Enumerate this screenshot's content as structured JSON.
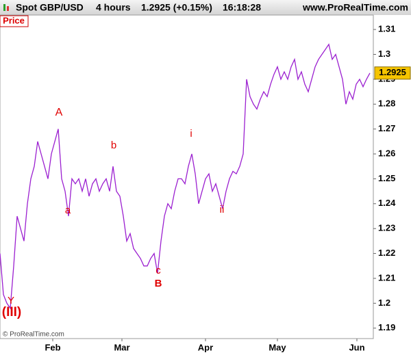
{
  "chart_data": {
    "type": "line",
    "header": {
      "symbol": "Spot GBP/USD",
      "period": "4 hours",
      "quote": "1.2925 (+0.15%)",
      "time": "16:18:28",
      "site": "www.ProRealTime.com"
    },
    "panel_label": "Price",
    "copyright": "© ProRealTime.com",
    "x": [
      0,
      1,
      2,
      3,
      4,
      5,
      6,
      7,
      8,
      9,
      10,
      11,
      12,
      13,
      14,
      15,
      16,
      17,
      18,
      19,
      20,
      21,
      22,
      23,
      24,
      25,
      26,
      27,
      28,
      29,
      30,
      31,
      32,
      33,
      34,
      35,
      36,
      37,
      38,
      39,
      40,
      41,
      42,
      43,
      44,
      45,
      46,
      47,
      48,
      49,
      50,
      51,
      52,
      53,
      54,
      55,
      56,
      57,
      58,
      59,
      60,
      61,
      62,
      63,
      64,
      65,
      66,
      67,
      68,
      69,
      70,
      71,
      72,
      73,
      74,
      75,
      76,
      77,
      78,
      79,
      80,
      81,
      82,
      83,
      84,
      85,
      86,
      87,
      88,
      89,
      90,
      91,
      92,
      93,
      94,
      95,
      96,
      97,
      98,
      99,
      100,
      101,
      102,
      103,
      104,
      105,
      106,
      107,
      108
    ],
    "series": [
      {
        "name": "GBP/USD",
        "color": "#9b1fd0",
        "values": [
          1.22,
          1.2035,
          1.2,
          1.198,
          1.215,
          1.235,
          1.23,
          1.225,
          1.24,
          1.25,
          1.255,
          1.265,
          1.26,
          1.255,
          1.25,
          1.26,
          1.265,
          1.27,
          1.25,
          1.245,
          1.235,
          1.25,
          1.248,
          1.25,
          1.245,
          1.25,
          1.243,
          1.248,
          1.25,
          1.245,
          1.248,
          1.25,
          1.245,
          1.255,
          1.245,
          1.243,
          1.235,
          1.225,
          1.228,
          1.222,
          1.22,
          1.218,
          1.215,
          1.215,
          1.218,
          1.22,
          1.212,
          1.225,
          1.235,
          1.24,
          1.238,
          1.245,
          1.25,
          1.25,
          1.248,
          1.255,
          1.26,
          1.252,
          1.24,
          1.245,
          1.25,
          1.252,
          1.245,
          1.248,
          1.243,
          1.238,
          1.245,
          1.25,
          1.253,
          1.252,
          1.255,
          1.26,
          1.29,
          1.283,
          1.28,
          1.278,
          1.282,
          1.285,
          1.283,
          1.288,
          1.292,
          1.295,
          1.29,
          1.293,
          1.29,
          1.295,
          1.298,
          1.29,
          1.293,
          1.288,
          1.285,
          1.29,
          1.295,
          1.298,
          1.3,
          1.302,
          1.304,
          1.298,
          1.3,
          1.295,
          1.29,
          1.28,
          1.285,
          1.282,
          1.288,
          1.29,
          1.287,
          1.29,
          1.2925
        ]
      }
    ],
    "last_price": {
      "value": 1.2925,
      "label": "1.2925"
    },
    "xlim": [
      0,
      109
    ],
    "xticks": [
      {
        "value": 15.4,
        "label": "Feb"
      },
      {
        "value": 35.6,
        "label": "Mar"
      },
      {
        "value": 60,
        "label": "Apr"
      },
      {
        "value": 81,
        "label": "May"
      },
      {
        "value": 104.2,
        "label": "Jun"
      }
    ],
    "ylim": [
      1.1858,
      1.3158
    ],
    "yticks": [
      1.19,
      1.2,
      1.21,
      1.22,
      1.23,
      1.24,
      1.25,
      1.26,
      1.27,
      1.28,
      1.29,
      1.3,
      1.31
    ],
    "annotations": [
      "A",
      "a",
      "b",
      "c",
      "B",
      "i",
      "ii",
      "Y",
      "(III)"
    ],
    "annotation_color": "#e00000"
  }
}
